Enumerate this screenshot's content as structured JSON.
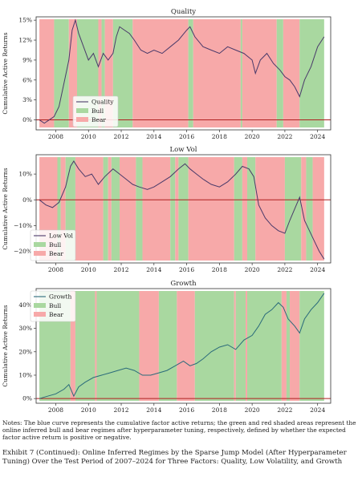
{
  "chart_data": [
    {
      "type": "line",
      "title": "Quality",
      "xlabel": "",
      "ylabel": "Cumulative Active Returns",
      "xlim": [
        2006.8,
        2024.8
      ],
      "ylim": [
        -0.015,
        0.155
      ],
      "x_ticks": [
        "2008",
        "2010",
        "2012",
        "2014",
        "2016",
        "2018",
        "2020",
        "2022",
        "2024"
      ],
      "y_ticks": [
        {
          "v": 0.0,
          "label": "0%"
        },
        {
          "v": 0.03,
          "label": "3%"
        },
        {
          "v": 0.06,
          "label": "6%"
        },
        {
          "v": 0.09,
          "label": "9%"
        },
        {
          "v": 0.12,
          "label": "12%"
        },
        {
          "v": 0.15,
          "label": "15%"
        }
      ],
      "legend": {
        "position": "lower-left",
        "entries": [
          "Quality",
          "Bull",
          "Bear"
        ]
      },
      "line_color": "#4a3a6a",
      "zero_line_color": "#b02020",
      "regime_colors": {
        "bull": "#a9d8a0",
        "bear": "#f7a9a9"
      },
      "regimes": [
        {
          "start": 2007.0,
          "end": 2007.9,
          "regime": "bear"
        },
        {
          "start": 2007.9,
          "end": 2008.8,
          "regime": "bull"
        },
        {
          "start": 2008.8,
          "end": 2009.3,
          "regime": "bear"
        },
        {
          "start": 2009.3,
          "end": 2010.6,
          "regime": "bull"
        },
        {
          "start": 2010.6,
          "end": 2010.8,
          "regime": "bear"
        },
        {
          "start": 2010.8,
          "end": 2011.0,
          "regime": "bull"
        },
        {
          "start": 2011.0,
          "end": 2011.5,
          "regime": "bear"
        },
        {
          "start": 2011.5,
          "end": 2012.7,
          "regime": "bull"
        },
        {
          "start": 2012.7,
          "end": 2016.1,
          "regime": "bear"
        },
        {
          "start": 2016.1,
          "end": 2016.4,
          "regime": "bull"
        },
        {
          "start": 2016.4,
          "end": 2019.3,
          "regime": "bear"
        },
        {
          "start": 2019.3,
          "end": 2019.4,
          "regime": "bull"
        },
        {
          "start": 2019.4,
          "end": 2021.5,
          "regime": "bear"
        },
        {
          "start": 2021.5,
          "end": 2021.9,
          "regime": "bull"
        },
        {
          "start": 2021.9,
          "end": 2022.9,
          "regime": "bear"
        },
        {
          "start": 2022.9,
          "end": 2024.4,
          "regime": "bull"
        }
      ],
      "series": [
        {
          "name": "Quality",
          "points": [
            [
              2007.0,
              0.0
            ],
            [
              2007.3,
              -0.005
            ],
            [
              2007.6,
              0.0
            ],
            [
              2007.9,
              0.005
            ],
            [
              2008.2,
              0.02
            ],
            [
              2008.5,
              0.055
            ],
            [
              2008.8,
              0.09
            ],
            [
              2009.0,
              0.135
            ],
            [
              2009.2,
              0.15
            ],
            [
              2009.4,
              0.13
            ],
            [
              2009.7,
              0.11
            ],
            [
              2010.0,
              0.09
            ],
            [
              2010.3,
              0.1
            ],
            [
              2010.6,
              0.08
            ],
            [
              2010.9,
              0.1
            ],
            [
              2011.2,
              0.09
            ],
            [
              2011.5,
              0.1
            ],
            [
              2011.7,
              0.125
            ],
            [
              2011.9,
              0.14
            ],
            [
              2012.2,
              0.135
            ],
            [
              2012.5,
              0.13
            ],
            [
              2012.8,
              0.12
            ],
            [
              2013.2,
              0.105
            ],
            [
              2013.6,
              0.1
            ],
            [
              2014.0,
              0.105
            ],
            [
              2014.5,
              0.1
            ],
            [
              2015.0,
              0.11
            ],
            [
              2015.5,
              0.12
            ],
            [
              2016.0,
              0.135
            ],
            [
              2016.2,
              0.14
            ],
            [
              2016.5,
              0.125
            ],
            [
              2017.0,
              0.11
            ],
            [
              2017.5,
              0.105
            ],
            [
              2018.0,
              0.1
            ],
            [
              2018.5,
              0.11
            ],
            [
              2019.0,
              0.105
            ],
            [
              2019.5,
              0.1
            ],
            [
              2020.0,
              0.09
            ],
            [
              2020.2,
              0.07
            ],
            [
              2020.5,
              0.09
            ],
            [
              2020.9,
              0.1
            ],
            [
              2021.3,
              0.085
            ],
            [
              2021.7,
              0.075
            ],
            [
              2022.0,
              0.065
            ],
            [
              2022.3,
              0.06
            ],
            [
              2022.6,
              0.05
            ],
            [
              2022.9,
              0.035
            ],
            [
              2023.2,
              0.06
            ],
            [
              2023.6,
              0.08
            ],
            [
              2024.0,
              0.11
            ],
            [
              2024.4,
              0.125
            ]
          ]
        }
      ]
    },
    {
      "type": "line",
      "title": "Low Vol",
      "xlabel": "",
      "ylabel": "Cumulative Active Returns",
      "xlim": [
        2006.8,
        2024.8
      ],
      "ylim": [
        -0.245,
        0.175
      ],
      "x_ticks": [
        "2008",
        "2010",
        "2012",
        "2014",
        "2016",
        "2018",
        "2020",
        "2022",
        "2024"
      ],
      "y_ticks": [
        {
          "v": -0.2,
          "label": "−20%"
        },
        {
          "v": -0.1,
          "label": "−10%"
        },
        {
          "v": 0.0,
          "label": "0%"
        },
        {
          "v": 0.1,
          "label": "10%"
        }
      ],
      "legend": {
        "position": "lower-left",
        "entries": [
          "Low Vol",
          "Bull",
          "Bear"
        ]
      },
      "line_color": "#4a3a6a",
      "zero_line_color": "#b02020",
      "regime_colors": {
        "bull": "#a9d8a0",
        "bear": "#f7a9a9"
      },
      "regimes": [
        {
          "start": 2007.0,
          "end": 2008.1,
          "regime": "bear"
        },
        {
          "start": 2008.1,
          "end": 2008.3,
          "regime": "bull"
        },
        {
          "start": 2008.3,
          "end": 2008.6,
          "regime": "bear"
        },
        {
          "start": 2008.6,
          "end": 2009.2,
          "regime": "bull"
        },
        {
          "start": 2009.2,
          "end": 2010.9,
          "regime": "bear"
        },
        {
          "start": 2010.9,
          "end": 2011.2,
          "regime": "bull"
        },
        {
          "start": 2011.2,
          "end": 2011.4,
          "regime": "bear"
        },
        {
          "start": 2011.4,
          "end": 2011.9,
          "regime": "bull"
        },
        {
          "start": 2011.9,
          "end": 2012.9,
          "regime": "bear"
        },
        {
          "start": 2012.9,
          "end": 2013.3,
          "regime": "bull"
        },
        {
          "start": 2013.3,
          "end": 2015.0,
          "regime": "bear"
        },
        {
          "start": 2015.0,
          "end": 2015.3,
          "regime": "bull"
        },
        {
          "start": 2015.3,
          "end": 2015.5,
          "regime": "bear"
        },
        {
          "start": 2015.5,
          "end": 2016.1,
          "regime": "bull"
        },
        {
          "start": 2016.1,
          "end": 2018.9,
          "regime": "bear"
        },
        {
          "start": 2018.9,
          "end": 2019.4,
          "regime": "bull"
        },
        {
          "start": 2019.4,
          "end": 2019.7,
          "regime": "bear"
        },
        {
          "start": 2019.7,
          "end": 2020.2,
          "regime": "bull"
        },
        {
          "start": 2020.2,
          "end": 2022.0,
          "regime": "bear"
        },
        {
          "start": 2022.0,
          "end": 2023.0,
          "regime": "bull"
        },
        {
          "start": 2023.0,
          "end": 2023.3,
          "regime": "bear"
        },
        {
          "start": 2023.3,
          "end": 2023.7,
          "regime": "bull"
        },
        {
          "start": 2023.7,
          "end": 2024.4,
          "regime": "bear"
        }
      ],
      "series": [
        {
          "name": "Low Vol",
          "points": [
            [
              2007.0,
              0.0
            ],
            [
              2007.4,
              -0.02
            ],
            [
              2007.8,
              -0.03
            ],
            [
              2008.2,
              -0.01
            ],
            [
              2008.6,
              0.05
            ],
            [
              2008.9,
              0.13
            ],
            [
              2009.1,
              0.15
            ],
            [
              2009.4,
              0.12
            ],
            [
              2009.8,
              0.09
            ],
            [
              2010.2,
              0.1
            ],
            [
              2010.6,
              0.06
            ],
            [
              2011.0,
              0.09
            ],
            [
              2011.5,
              0.12
            ],
            [
              2011.9,
              0.1
            ],
            [
              2012.3,
              0.08
            ],
            [
              2012.7,
              0.06
            ],
            [
              2013.1,
              0.05
            ],
            [
              2013.6,
              0.04
            ],
            [
              2014.0,
              0.05
            ],
            [
              2014.5,
              0.07
            ],
            [
              2015.0,
              0.09
            ],
            [
              2015.5,
              0.12
            ],
            [
              2015.9,
              0.14
            ],
            [
              2016.2,
              0.12
            ],
            [
              2016.6,
              0.1
            ],
            [
              2017.0,
              0.08
            ],
            [
              2017.5,
              0.06
            ],
            [
              2018.0,
              0.05
            ],
            [
              2018.5,
              0.07
            ],
            [
              2019.0,
              0.1
            ],
            [
              2019.4,
              0.13
            ],
            [
              2019.8,
              0.12
            ],
            [
              2020.1,
              0.09
            ],
            [
              2020.4,
              -0.02
            ],
            [
              2020.8,
              -0.07
            ],
            [
              2021.2,
              -0.1
            ],
            [
              2021.6,
              -0.12
            ],
            [
              2022.0,
              -0.13
            ],
            [
              2022.3,
              -0.08
            ],
            [
              2022.7,
              -0.02
            ],
            [
              2022.9,
              0.01
            ],
            [
              2023.2,
              -0.08
            ],
            [
              2023.5,
              -0.12
            ],
            [
              2023.8,
              -0.16
            ],
            [
              2024.1,
              -0.2
            ],
            [
              2024.4,
              -0.23
            ]
          ]
        }
      ]
    },
    {
      "type": "line",
      "title": "Growth",
      "xlabel": "",
      "ylabel": "Cumulative Active Returns",
      "xlim": [
        2006.8,
        2024.8
      ],
      "ylim": [
        -0.02,
        0.47
      ],
      "x_ticks": [
        "2008",
        "2010",
        "2012",
        "2014",
        "2016",
        "2018",
        "2020",
        "2022",
        "2024"
      ],
      "y_ticks": [
        {
          "v": 0.0,
          "label": "0%"
        },
        {
          "v": 0.1,
          "label": "10%"
        },
        {
          "v": 0.2,
          "label": "20%"
        },
        {
          "v": 0.3,
          "label": "30%"
        },
        {
          "v": 0.4,
          "label": "40%"
        }
      ],
      "legend": {
        "position": "upper-left",
        "entries": [
          "Growth",
          "Bull",
          "Bear"
        ]
      },
      "line_color": "#2a6a7a",
      "zero_line_color": "#b02020",
      "regime_colors": {
        "bull": "#a9d8a0",
        "bear": "#f7a9a9"
      },
      "regimes": [
        {
          "start": 2007.0,
          "end": 2008.9,
          "regime": "bull"
        },
        {
          "start": 2008.9,
          "end": 2009.2,
          "regime": "bear"
        },
        {
          "start": 2009.2,
          "end": 2010.4,
          "regime": "bull"
        },
        {
          "start": 2010.4,
          "end": 2010.5,
          "regime": "bear"
        },
        {
          "start": 2010.5,
          "end": 2013.1,
          "regime": "bull"
        },
        {
          "start": 2013.1,
          "end": 2014.3,
          "regime": "bear"
        },
        {
          "start": 2014.3,
          "end": 2015.4,
          "regime": "bull"
        },
        {
          "start": 2015.4,
          "end": 2016.5,
          "regime": "bear"
        },
        {
          "start": 2016.5,
          "end": 2018.9,
          "regime": "bull"
        },
        {
          "start": 2018.9,
          "end": 2019.0,
          "regime": "bear"
        },
        {
          "start": 2019.0,
          "end": 2019.6,
          "regime": "bull"
        },
        {
          "start": 2019.6,
          "end": 2019.7,
          "regime": "bear"
        },
        {
          "start": 2019.7,
          "end": 2021.8,
          "regime": "bull"
        },
        {
          "start": 2021.8,
          "end": 2022.1,
          "regime": "bear"
        },
        {
          "start": 2022.1,
          "end": 2022.3,
          "regime": "bull"
        },
        {
          "start": 2022.3,
          "end": 2022.9,
          "regime": "bear"
        },
        {
          "start": 2022.9,
          "end": 2024.4,
          "regime": "bull"
        }
      ],
      "series": [
        {
          "name": "Growth",
          "points": [
            [
              2007.0,
              0.0
            ],
            [
              2007.5,
              0.01
            ],
            [
              2008.0,
              0.02
            ],
            [
              2008.5,
              0.04
            ],
            [
              2008.8,
              0.06
            ],
            [
              2009.1,
              0.01
            ],
            [
              2009.4,
              0.05
            ],
            [
              2009.8,
              0.07
            ],
            [
              2010.3,
              0.09
            ],
            [
              2010.8,
              0.1
            ],
            [
              2011.3,
              0.11
            ],
            [
              2011.8,
              0.12
            ],
            [
              2012.3,
              0.13
            ],
            [
              2012.8,
              0.12
            ],
            [
              2013.3,
              0.1
            ],
            [
              2013.8,
              0.1
            ],
            [
              2014.3,
              0.11
            ],
            [
              2014.8,
              0.12
            ],
            [
              2015.3,
              0.14
            ],
            [
              2015.8,
              0.16
            ],
            [
              2016.2,
              0.14
            ],
            [
              2016.6,
              0.15
            ],
            [
              2017.0,
              0.17
            ],
            [
              2017.5,
              0.2
            ],
            [
              2018.0,
              0.22
            ],
            [
              2018.5,
              0.23
            ],
            [
              2019.0,
              0.21
            ],
            [
              2019.5,
              0.25
            ],
            [
              2020.0,
              0.27
            ],
            [
              2020.4,
              0.31
            ],
            [
              2020.8,
              0.36
            ],
            [
              2021.2,
              0.38
            ],
            [
              2021.6,
              0.41
            ],
            [
              2021.9,
              0.39
            ],
            [
              2022.2,
              0.34
            ],
            [
              2022.6,
              0.31
            ],
            [
              2022.9,
              0.28
            ],
            [
              2023.2,
              0.34
            ],
            [
              2023.6,
              0.38
            ],
            [
              2024.0,
              0.41
            ],
            [
              2024.4,
              0.45
            ]
          ]
        }
      ]
    }
  ],
  "notes": "Notes: The blue curve represents the cumulative factor active returns; the green and red shaded areas represent the online inferred bull and bear regimes after hyperparameter tuning, respectively, defined by whether the expected factor active return is positive or negative.",
  "caption": "Exhibit 7 (Continued): Online Inferred Regimes by the Sparse Jump Model (After Hyperparameter Tuning) Over the Test Period of 2007–2024 for Three Factors: Quality, Low Volatility, and Growth"
}
